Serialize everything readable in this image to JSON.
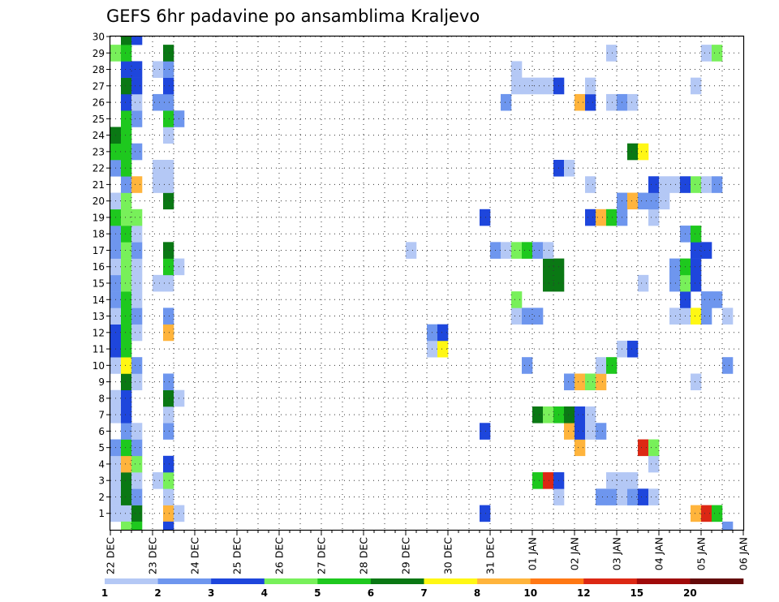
{
  "chart_data": {
    "type": "heatmap",
    "title": "GEFS 6hr padavine po ansamblima Kraljevo",
    "y_members": [
      1,
      2,
      3,
      4,
      5,
      6,
      7,
      8,
      9,
      10,
      11,
      12,
      13,
      14,
      15,
      16,
      17,
      18,
      19,
      20,
      21,
      22,
      23,
      24,
      25,
      26,
      27,
      28,
      29,
      30
    ],
    "x_tick_labels": [
      "22 DEC",
      "23 DEC",
      "24 DEC",
      "25 DEC",
      "26 DEC",
      "27 DEC",
      "28 DEC",
      "29 DEC",
      "30 DEC",
      "31 DEC",
      "01 JAN",
      "02 JAN",
      "03 JAN",
      "04 JAN",
      "05 JAN",
      "06 JAN"
    ],
    "x_range_days": [
      0,
      15
    ],
    "colorbar": {
      "labels": [
        "1",
        "2",
        "3",
        "4",
        "5",
        "6",
        "7",
        "8",
        "10",
        "12",
        "15",
        "20"
      ],
      "colors": [
        "#b4c8f5",
        "#6e96ee",
        "#1e46dc",
        "#78f05a",
        "#1ec81e",
        "#0a7814",
        "#fff714",
        "#ffb43c",
        "#ff7814",
        "#dc2814",
        "#a00a0a",
        "#640a0a"
      ]
    },
    "grid": true,
    "cells": [
      {
        "member": 1,
        "day": 0.0,
        "value": 1
      },
      {
        "member": 1,
        "day": 0.25,
        "value": 1
      },
      {
        "member": 1,
        "day": 0.5,
        "value": 6
      },
      {
        "member": 1,
        "day": 1.25,
        "value": 8
      },
      {
        "member": 1,
        "day": 1.5,
        "value": 1
      },
      {
        "member": 1,
        "day": 8.75,
        "value": 3
      },
      {
        "member": 1,
        "day": 13.75,
        "value": 8
      },
      {
        "member": 1,
        "day": 14.0,
        "value": 10
      },
      {
        "member": 1,
        "day": 14.25,
        "value": 5
      },
      {
        "member": 2,
        "day": 0.0,
        "value": 1
      },
      {
        "member": 2,
        "day": 0.25,
        "value": 6
      },
      {
        "member": 2,
        "day": 0.5,
        "value": 2
      },
      {
        "member": 2,
        "day": 1.25,
        "value": 1
      },
      {
        "member": 2,
        "day": 10.5,
        "value": 1
      },
      {
        "member": 2,
        "day": 11.5,
        "value": 2
      },
      {
        "member": 2,
        "day": 11.75,
        "value": 2
      },
      {
        "member": 2,
        "day": 12.0,
        "value": 1
      },
      {
        "member": 2,
        "day": 12.25,
        "value": 2
      },
      {
        "member": 2,
        "day": 12.5,
        "value": 3
      },
      {
        "member": 2,
        "day": 12.75,
        "value": 1
      },
      {
        "member": 3,
        "day": 0.0,
        "value": 1
      },
      {
        "member": 3,
        "day": 0.25,
        "value": 6
      },
      {
        "member": 3,
        "day": 0.5,
        "value": 1
      },
      {
        "member": 3,
        "day": 1.0,
        "value": 1
      },
      {
        "member": 3,
        "day": 1.25,
        "value": 4
      },
      {
        "member": 3,
        "day": 10.0,
        "value": 5
      },
      {
        "member": 3,
        "day": 10.25,
        "value": 10
      },
      {
        "member": 3,
        "day": 10.5,
        "value": 3
      },
      {
        "member": 3,
        "day": 11.75,
        "value": 1
      },
      {
        "member": 3,
        "day": 12.0,
        "value": 1
      },
      {
        "member": 3,
        "day": 12.25,
        "value": 1
      },
      {
        "member": 4,
        "day": 0.0,
        "value": 1
      },
      {
        "member": 4,
        "day": 0.25,
        "value": 8
      },
      {
        "member": 4,
        "day": 0.5,
        "value": 4
      },
      {
        "member": 4,
        "day": 1.25,
        "value": 3
      },
      {
        "member": 4,
        "day": 12.75,
        "value": 1
      },
      {
        "member": 5,
        "day": 0.0,
        "value": 2
      },
      {
        "member": 5,
        "day": 0.25,
        "value": 5
      },
      {
        "member": 5,
        "day": 0.5,
        "value": 2
      },
      {
        "member": 5,
        "day": 11.0,
        "value": 8
      },
      {
        "member": 5,
        "day": 12.5,
        "value": 10
      },
      {
        "member": 5,
        "day": 12.75,
        "value": 4
      },
      {
        "member": 6,
        "day": 0.25,
        "value": 2
      },
      {
        "member": 6,
        "day": 0.5,
        "value": 1
      },
      {
        "member": 6,
        "day": 1.25,
        "value": 2
      },
      {
        "member": 6,
        "day": 8.75,
        "value": 3
      },
      {
        "member": 6,
        "day": 10.75,
        "value": 8
      },
      {
        "member": 6,
        "day": 11.0,
        "value": 3
      },
      {
        "member": 6,
        "day": 11.25,
        "value": 1
      },
      {
        "member": 6,
        "day": 11.5,
        "value": 2
      },
      {
        "member": 7,
        "day": 0.0,
        "value": 1
      },
      {
        "member": 7,
        "day": 0.25,
        "value": 3
      },
      {
        "member": 7,
        "day": 1.25,
        "value": 1
      },
      {
        "member": 7,
        "day": 10.0,
        "value": 6
      },
      {
        "member": 7,
        "day": 10.25,
        "value": 4
      },
      {
        "member": 7,
        "day": 10.5,
        "value": 5
      },
      {
        "member": 7,
        "day": 10.75,
        "value": 6
      },
      {
        "member": 7,
        "day": 11.0,
        "value": 3
      },
      {
        "member": 7,
        "day": 11.25,
        "value": 1
      },
      {
        "member": 8,
        "day": 0.0,
        "value": 1
      },
      {
        "member": 8,
        "day": 0.25,
        "value": 3
      },
      {
        "member": 8,
        "day": 1.25,
        "value": 6
      },
      {
        "member": 8,
        "day": 1.5,
        "value": 1
      },
      {
        "member": 9,
        "day": 0.25,
        "value": 6
      },
      {
        "member": 9,
        "day": 0.5,
        "value": 1
      },
      {
        "member": 9,
        "day": 1.25,
        "value": 2
      },
      {
        "member": 9,
        "day": 10.75,
        "value": 2
      },
      {
        "member": 9,
        "day": 11.0,
        "value": 8
      },
      {
        "member": 9,
        "day": 11.25,
        "value": 4
      },
      {
        "member": 9,
        "day": 11.5,
        "value": 8
      },
      {
        "member": 9,
        "day": 13.75,
        "value": 1
      },
      {
        "member": 10,
        "day": 0.0,
        "value": 1
      },
      {
        "member": 10,
        "day": 0.25,
        "value": 7
      },
      {
        "member": 10,
        "day": 0.5,
        "value": 2
      },
      {
        "member": 10,
        "day": 9.75,
        "value": 2
      },
      {
        "member": 10,
        "day": 11.5,
        "value": 1
      },
      {
        "member": 10,
        "day": 11.75,
        "value": 5
      },
      {
        "member": 10,
        "day": 14.5,
        "value": 2
      },
      {
        "member": 11,
        "day": 0.0,
        "value": 3
      },
      {
        "member": 11,
        "day": 0.25,
        "value": 5
      },
      {
        "member": 11,
        "day": 7.5,
        "value": 1
      },
      {
        "member": 11,
        "day": 7.75,
        "value": 7
      },
      {
        "member": 11,
        "day": 12.0,
        "value": 1
      },
      {
        "member": 11,
        "day": 12.25,
        "value": 3
      },
      {
        "member": 12,
        "day": 0.0,
        "value": 3
      },
      {
        "member": 12,
        "day": 0.25,
        "value": 5
      },
      {
        "member": 12,
        "day": 0.5,
        "value": 1
      },
      {
        "member": 12,
        "day": 1.25,
        "value": 8
      },
      {
        "member": 12,
        "day": 7.5,
        "value": 2
      },
      {
        "member": 12,
        "day": 7.75,
        "value": 3
      },
      {
        "member": 13,
        "day": 0.0,
        "value": 1
      },
      {
        "member": 13,
        "day": 0.25,
        "value": 5
      },
      {
        "member": 13,
        "day": 0.5,
        "value": 2
      },
      {
        "member": 13,
        "day": 1.25,
        "value": 2
      },
      {
        "member": 13,
        "day": 9.5,
        "value": 1
      },
      {
        "member": 13,
        "day": 9.75,
        "value": 2
      },
      {
        "member": 13,
        "day": 10.0,
        "value": 2
      },
      {
        "member": 13,
        "day": 13.25,
        "value": 1
      },
      {
        "member": 13,
        "day": 13.5,
        "value": 1
      },
      {
        "member": 13,
        "day": 13.75,
        "value": 7
      },
      {
        "member": 13,
        "day": 14.0,
        "value": 2
      },
      {
        "member": 13,
        "day": 14.5,
        "value": 1
      },
      {
        "member": 14,
        "day": 0.0,
        "value": 2
      },
      {
        "member": 14,
        "day": 0.25,
        "value": 5
      },
      {
        "member": 14,
        "day": 0.5,
        "value": 1
      },
      {
        "member": 14,
        "day": 9.5,
        "value": 4
      },
      {
        "member": 14,
        "day": 13.5,
        "value": 3
      },
      {
        "member": 14,
        "day": 14.0,
        "value": 2
      },
      {
        "member": 14,
        "day": 14.25,
        "value": 2
      },
      {
        "member": 15,
        "day": 0.0,
        "value": 2
      },
      {
        "member": 15,
        "day": 0.25,
        "value": 4
      },
      {
        "member": 15,
        "day": 0.5,
        "value": 1
      },
      {
        "member": 15,
        "day": 1.0,
        "value": 1
      },
      {
        "member": 15,
        "day": 1.25,
        "value": 1
      },
      {
        "member": 15,
        "day": 10.25,
        "value": 6
      },
      {
        "member": 15,
        "day": 10.5,
        "value": 6
      },
      {
        "member": 15,
        "day": 12.5,
        "value": 1
      },
      {
        "member": 15,
        "day": 13.25,
        "value": 2
      },
      {
        "member": 15,
        "day": 13.5,
        "value": 4
      },
      {
        "member": 15,
        "day": 13.75,
        "value": 3
      },
      {
        "member": 16,
        "day": 0.0,
        "value": 1
      },
      {
        "member": 16,
        "day": 0.25,
        "value": 4
      },
      {
        "member": 16,
        "day": 0.5,
        "value": 1
      },
      {
        "member": 16,
        "day": 1.25,
        "value": 5
      },
      {
        "member": 16,
        "day": 1.5,
        "value": 1
      },
      {
        "member": 16,
        "day": 10.25,
        "value": 6
      },
      {
        "member": 16,
        "day": 10.5,
        "value": 6
      },
      {
        "member": 16,
        "day": 13.25,
        "value": 2
      },
      {
        "member": 16,
        "day": 13.5,
        "value": 5
      },
      {
        "member": 16,
        "day": 13.75,
        "value": 3
      },
      {
        "member": 17,
        "day": 0.0,
        "value": 2
      },
      {
        "member": 17,
        "day": 0.25,
        "value": 4
      },
      {
        "member": 17,
        "day": 0.5,
        "value": 2
      },
      {
        "member": 17,
        "day": 1.25,
        "value": 6
      },
      {
        "member": 17,
        "day": 7.0,
        "value": 1
      },
      {
        "member": 17,
        "day": 9.0,
        "value": 2
      },
      {
        "member": 17,
        "day": 9.25,
        "value": 1
      },
      {
        "member": 17,
        "day": 9.5,
        "value": 4
      },
      {
        "member": 17,
        "day": 9.75,
        "value": 5
      },
      {
        "member": 17,
        "day": 10.0,
        "value": 2
      },
      {
        "member": 17,
        "day": 10.25,
        "value": 1
      },
      {
        "member": 17,
        "day": 13.75,
        "value": 3
      },
      {
        "member": 17,
        "day": 14.0,
        "value": 3
      },
      {
        "member": 18,
        "day": 0.0,
        "value": 2
      },
      {
        "member": 18,
        "day": 0.25,
        "value": 5
      },
      {
        "member": 18,
        "day": 0.5,
        "value": 1
      },
      {
        "member": 18,
        "day": 13.5,
        "value": 2
      },
      {
        "member": 18,
        "day": 13.75,
        "value": 5
      },
      {
        "member": 19,
        "day": 0.0,
        "value": 5
      },
      {
        "member": 19,
        "day": 0.25,
        "value": 4
      },
      {
        "member": 19,
        "day": 0.5,
        "value": 4
      },
      {
        "member": 19,
        "day": 8.75,
        "value": 3
      },
      {
        "member": 19,
        "day": 11.25,
        "value": 3
      },
      {
        "member": 19,
        "day": 11.5,
        "value": 8
      },
      {
        "member": 19,
        "day": 11.75,
        "value": 5
      },
      {
        "member": 19,
        "day": 12.0,
        "value": 2
      },
      {
        "member": 19,
        "day": 12.75,
        "value": 1
      },
      {
        "member": 20,
        "day": 0.0,
        "value": 1
      },
      {
        "member": 20,
        "day": 0.25,
        "value": 4
      },
      {
        "member": 20,
        "day": 1.25,
        "value": 6
      },
      {
        "member": 20,
        "day": 12.0,
        "value": 2
      },
      {
        "member": 20,
        "day": 12.25,
        "value": 8
      },
      {
        "member": 20,
        "day": 12.5,
        "value": 2
      },
      {
        "member": 20,
        "day": 12.75,
        "value": 2
      },
      {
        "member": 20,
        "day": 13.0,
        "value": 1
      },
      {
        "member": 21,
        "day": 0.25,
        "value": 2
      },
      {
        "member": 21,
        "day": 0.5,
        "value": 8
      },
      {
        "member": 21,
        "day": 1.0,
        "value": 1
      },
      {
        "member": 21,
        "day": 1.25,
        "value": 1
      },
      {
        "member": 21,
        "day": 11.25,
        "value": 1
      },
      {
        "member": 21,
        "day": 12.75,
        "value": 3
      },
      {
        "member": 21,
        "day": 13.0,
        "value": 1
      },
      {
        "member": 21,
        "day": 13.25,
        "value": 1
      },
      {
        "member": 21,
        "day": 13.5,
        "value": 3
      },
      {
        "member": 21,
        "day": 13.75,
        "value": 4
      },
      {
        "member": 21,
        "day": 14.0,
        "value": 1
      },
      {
        "member": 21,
        "day": 14.25,
        "value": 2
      },
      {
        "member": 22,
        "day": 0.0,
        "value": 2
      },
      {
        "member": 22,
        "day": 0.25,
        "value": 5
      },
      {
        "member": 22,
        "day": 1.0,
        "value": 1
      },
      {
        "member": 22,
        "day": 1.25,
        "value": 1
      },
      {
        "member": 22,
        "day": 10.5,
        "value": 3
      },
      {
        "member": 22,
        "day": 10.75,
        "value": 1
      },
      {
        "member": 23,
        "day": 0.0,
        "value": 5
      },
      {
        "member": 23,
        "day": 0.25,
        "value": 5
      },
      {
        "member": 23,
        "day": 0.5,
        "value": 2
      },
      {
        "member": 23,
        "day": 12.25,
        "value": 6
      },
      {
        "member": 23,
        "day": 12.5,
        "value": 7
      },
      {
        "member": 24,
        "day": 0.0,
        "value": 6
      },
      {
        "member": 24,
        "day": 0.25,
        "value": 5
      },
      {
        "member": 24,
        "day": 1.25,
        "value": 1
      },
      {
        "member": 25,
        "day": 0.25,
        "value": 5
      },
      {
        "member": 25,
        "day": 0.5,
        "value": 2
      },
      {
        "member": 25,
        "day": 1.25,
        "value": 5
      },
      {
        "member": 25,
        "day": 1.5,
        "value": 2
      },
      {
        "member": 26,
        "day": 0.25,
        "value": 3
      },
      {
        "member": 26,
        "day": 0.5,
        "value": 1
      },
      {
        "member": 26,
        "day": 1.0,
        "value": 2
      },
      {
        "member": 26,
        "day": 1.25,
        "value": 2
      },
      {
        "member": 26,
        "day": 9.25,
        "value": 2
      },
      {
        "member": 26,
        "day": 11.0,
        "value": 8
      },
      {
        "member": 26,
        "day": 11.25,
        "value": 3
      },
      {
        "member": 26,
        "day": 11.75,
        "value": 1
      },
      {
        "member": 26,
        "day": 12.0,
        "value": 2
      },
      {
        "member": 26,
        "day": 12.25,
        "value": 1
      },
      {
        "member": 27,
        "day": 0.25,
        "value": 6
      },
      {
        "member": 27,
        "day": 0.5,
        "value": 3
      },
      {
        "member": 27,
        "day": 1.25,
        "value": 3
      },
      {
        "member": 27,
        "day": 9.5,
        "value": 1
      },
      {
        "member": 27,
        "day": 9.75,
        "value": 1
      },
      {
        "member": 27,
        "day": 10.0,
        "value": 1
      },
      {
        "member": 27,
        "day": 10.25,
        "value": 1
      },
      {
        "member": 27,
        "day": 10.5,
        "value": 3
      },
      {
        "member": 27,
        "day": 11.25,
        "value": 1
      },
      {
        "member": 27,
        "day": 13.75,
        "value": 1
      },
      {
        "member": 28,
        "day": 0.25,
        "value": 3
      },
      {
        "member": 28,
        "day": 0.5,
        "value": 3
      },
      {
        "member": 28,
        "day": 1.0,
        "value": 1
      },
      {
        "member": 28,
        "day": 1.25,
        "value": 2
      },
      {
        "member": 28,
        "day": 9.5,
        "value": 1
      },
      {
        "member": 29,
        "day": 0.0,
        "value": 4
      },
      {
        "member": 29,
        "day": 0.25,
        "value": 5
      },
      {
        "member": 29,
        "day": 1.25,
        "value": 6
      },
      {
        "member": 29,
        "day": 11.75,
        "value": 1
      },
      {
        "member": 29,
        "day": 14.0,
        "value": 1
      },
      {
        "member": 29,
        "day": 14.25,
        "value": 4
      },
      {
        "member": 30,
        "day": 0.25,
        "value": 6
      },
      {
        "member": 30,
        "day": 0.5,
        "value": 3
      },
      {
        "member": 0,
        "day": 0.25,
        "value": 4
      },
      {
        "member": 0,
        "day": 0.5,
        "value": 5
      },
      {
        "member": 0,
        "day": 1.25,
        "value": 3
      },
      {
        "member": 0,
        "day": 14.5,
        "value": 2
      }
    ]
  }
}
